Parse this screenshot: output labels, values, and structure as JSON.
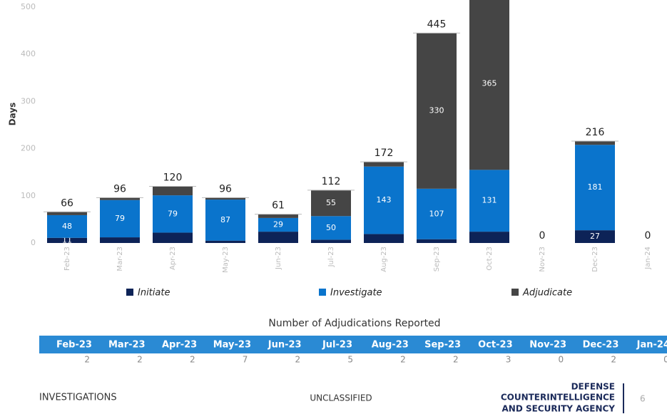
{
  "chart_data": {
    "type": "stacked_bar",
    "y_label": "Days",
    "categories": [
      "Feb-23",
      "Mar-23",
      "Apr-23",
      "May-23",
      "Jun-23",
      "Jul-23",
      "Aug-23",
      "Sep-23",
      "Oct-23",
      "Nov-23",
      "Dec-23",
      "Jan-24"
    ],
    "series": [
      {
        "name": "Initiate",
        "color": "#0d2357",
        "values": [
          11,
          12,
          22,
          5,
          24,
          7,
          19,
          8,
          24,
          0,
          27,
          0
        ],
        "value_labels": [
          "11",
          null,
          null,
          null,
          null,
          null,
          null,
          null,
          null,
          null,
          "27",
          null
        ]
      },
      {
        "name": "Investigate",
        "color": "#0a74cc",
        "values": [
          48,
          79,
          79,
          87,
          29,
          50,
          143,
          107,
          131,
          0,
          181,
          0
        ],
        "value_labels": [
          "48",
          "79",
          "79",
          "87",
          "29",
          "50",
          "143",
          "107",
          "131",
          null,
          "181",
          null
        ]
      },
      {
        "name": "Adjudicate",
        "color": "#454545",
        "values": [
          7,
          5,
          19,
          4,
          8,
          55,
          10,
          330,
          365,
          0,
          8,
          0
        ],
        "value_labels": [
          null,
          null,
          null,
          null,
          null,
          "55",
          null,
          "330",
          "365",
          null,
          null,
          null
        ]
      }
    ],
    "totals": [
      66,
      96,
      120,
      96,
      61,
      112,
      172,
      445,
      null,
      0,
      216,
      0
    ],
    "ylim": [
      0,
      515
    ],
    "yticks": [
      0,
      100,
      200,
      300,
      400,
      500
    ],
    "grid": false,
    "legend": "bottom"
  },
  "table": {
    "title": "Number of Adjudications Reported",
    "counts": [
      2,
      2,
      2,
      7,
      2,
      5,
      2,
      2,
      3,
      0,
      2,
      0
    ]
  },
  "footer": {
    "left": "INVESTIGATIONS",
    "center": "UNCLASSIFIED",
    "agency": [
      "DEFENSE",
      "COUNTERINTELLIGENCE",
      "AND SECURITY AGENCY"
    ],
    "page": "6"
  }
}
